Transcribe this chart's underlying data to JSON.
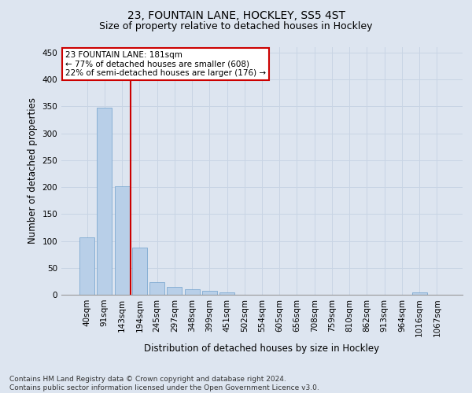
{
  "title_main": "23, FOUNTAIN LANE, HOCKLEY, SS5 4ST",
  "title_sub": "Size of property relative to detached houses in Hockley",
  "xlabel": "Distribution of detached houses by size in Hockley",
  "ylabel": "Number of detached properties",
  "categories": [
    "40sqm",
    "91sqm",
    "143sqm",
    "194sqm",
    "245sqm",
    "297sqm",
    "348sqm",
    "399sqm",
    "451sqm",
    "502sqm",
    "554sqm",
    "605sqm",
    "656sqm",
    "708sqm",
    "759sqm",
    "810sqm",
    "862sqm",
    "913sqm",
    "964sqm",
    "1016sqm",
    "1067sqm"
  ],
  "values": [
    107,
    348,
    201,
    88,
    24,
    15,
    10,
    7,
    4,
    0,
    0,
    0,
    0,
    0,
    0,
    0,
    0,
    0,
    0,
    4,
    0
  ],
  "bar_color": "#b8cfe8",
  "bar_edgecolor": "#6fa0cc",
  "grid_color": "#c8d4e4",
  "background_color": "#dde5f0",
  "vline_color": "#cc0000",
  "annotation_text": "23 FOUNTAIN LANE: 181sqm\n← 77% of detached houses are smaller (608)\n22% of semi-detached houses are larger (176) →",
  "annotation_box_color": "#ffffff",
  "annotation_box_edgecolor": "#cc0000",
  "ylim": [
    0,
    460
  ],
  "yticks": [
    0,
    50,
    100,
    150,
    200,
    250,
    300,
    350,
    400,
    450
  ],
  "footnote": "Contains HM Land Registry data © Crown copyright and database right 2024.\nContains public sector information licensed under the Open Government Licence v3.0.",
  "title_fontsize": 10,
  "subtitle_fontsize": 9,
  "axis_label_fontsize": 8.5,
  "tick_fontsize": 7.5,
  "footnote_fontsize": 6.5
}
